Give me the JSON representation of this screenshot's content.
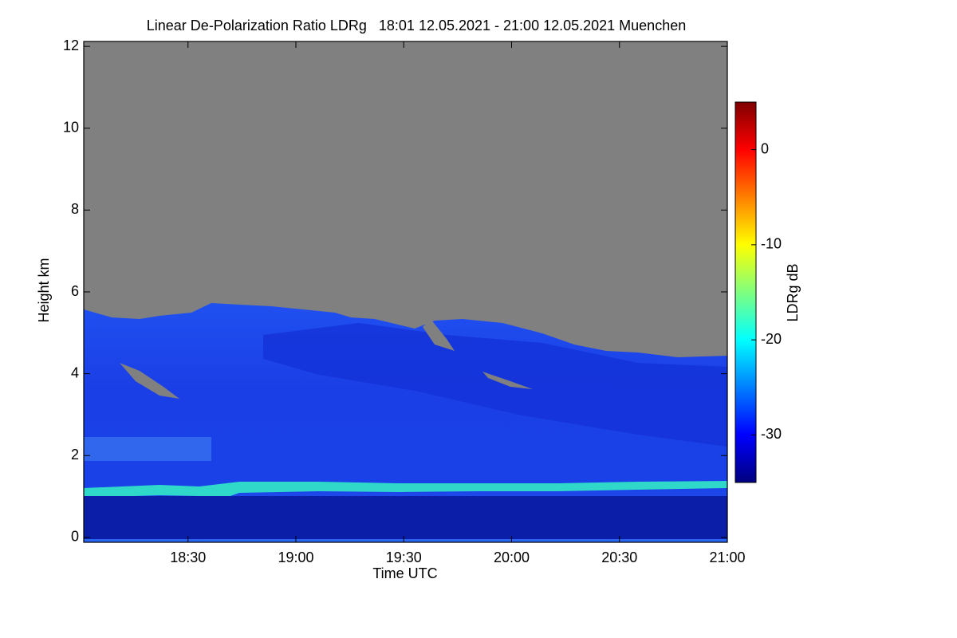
{
  "chart_data": {
    "type": "heatmap",
    "title": "Linear De-Polarization Ratio LDRg   18:01 12.05.2021 - 21:00 12.05.2021 Muenchen",
    "xlabel": "Time UTC",
    "ylabel": "Height km",
    "xlim": [
      18.0167,
      21.0
    ],
    "xticks": [
      {
        "value": 18.5,
        "label": "18:30"
      },
      {
        "value": 19.0,
        "label": "19:00"
      },
      {
        "value": 19.5,
        "label": "19:30"
      },
      {
        "value": 20.0,
        "label": "20:00"
      },
      {
        "value": 20.5,
        "label": "20:30"
      },
      {
        "value": 21.0,
        "label": "21:00"
      }
    ],
    "ylim": [
      -0.12,
      12.12
    ],
    "yticks": [
      0,
      2,
      4,
      6,
      8,
      10,
      12
    ],
    "colorbar": {
      "label": "LDRg dB",
      "clim": [
        -35,
        5
      ],
      "ticks": [
        0,
        -10,
        -20,
        -30
      ],
      "colormap": "jet"
    }
  }
}
